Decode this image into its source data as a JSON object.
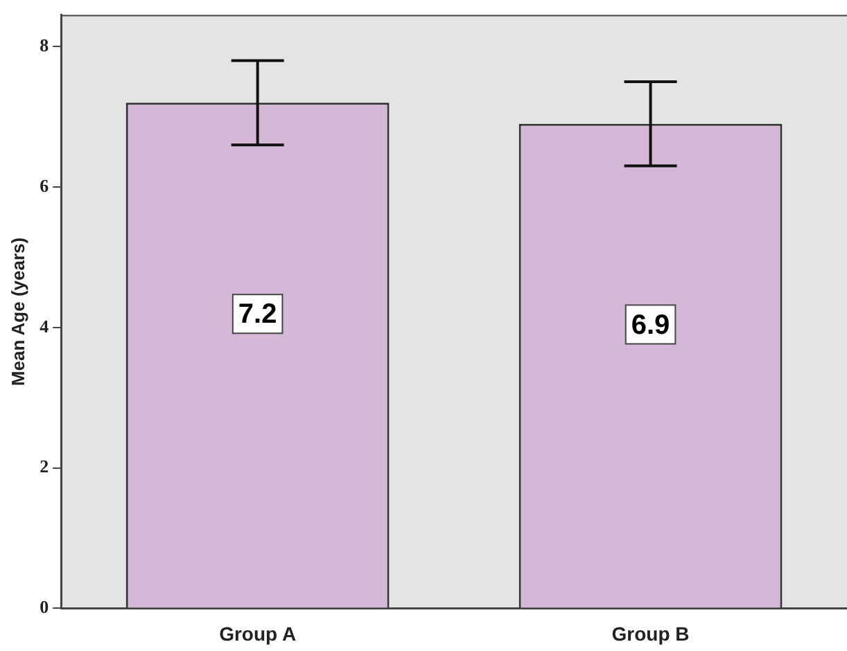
{
  "chart_data": {
    "type": "bar",
    "ylabel": "Mean Age (years)",
    "categories": [
      "Group A",
      "Group B"
    ],
    "values": [
      7.2,
      6.9
    ],
    "color": "#d5b7d8",
    "errors": [
      [
        6.6,
        7.8
      ],
      [
        6.3,
        7.5
      ]
    ],
    "ylim": [
      0,
      8.45
    ],
    "yticks": [
      0,
      2,
      4,
      6,
      8
    ],
    "grid": false,
    "data_labels": true,
    "legend": false
  }
}
